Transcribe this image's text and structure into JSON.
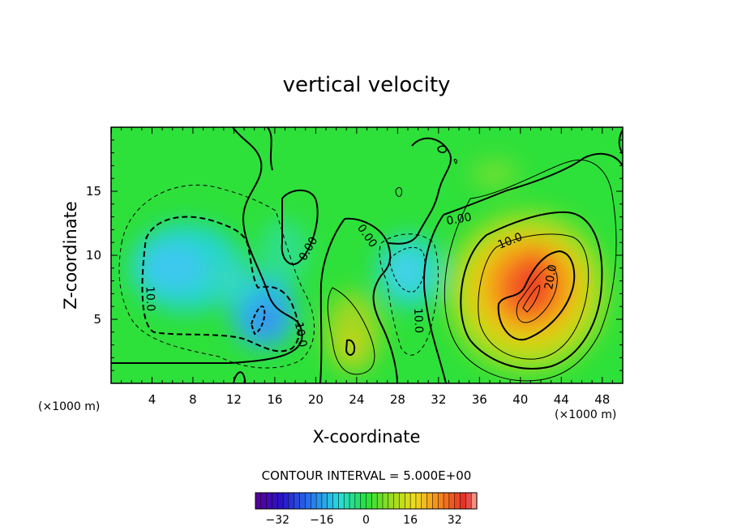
{
  "chart_data": {
    "type": "heatmap",
    "title": "vertical velocity",
    "xlabel": "X-coordinate",
    "ylabel": "Z-coordinate",
    "x_unit": "(×1000 m)",
    "xlim": [
      0,
      50
    ],
    "ylim": [
      0,
      20
    ],
    "x_ticks": [
      4,
      8,
      12,
      16,
      20,
      24,
      28,
      32,
      36,
      40,
      44,
      48
    ],
    "y_ticks": [
      5,
      10,
      15
    ],
    "contour_interval_label": "CONTOUR INTERVAL = 5.000E+00",
    "contour_interval": 5,
    "contour_labels": [
      {
        "text": "0.00",
        "x": 19.3,
        "z": 10.5,
        "angle": -60
      },
      {
        "text": "0.00",
        "x": 25.0,
        "z": 11.5,
        "angle": 55
      },
      {
        "text": "0.00",
        "x": 34.0,
        "z": 12.8,
        "angle": -10
      },
      {
        "text": "10.0",
        "x": 39.0,
        "z": 11.1,
        "angle": -22
      },
      {
        "text": "20.0",
        "x": 43.0,
        "z": 8.3,
        "angle": -80
      },
      {
        "text": "10.0",
        "x": 3.8,
        "z": 6.6,
        "angle": 88
      },
      {
        "text": "10.0",
        "x": 18.5,
        "z": 3.8,
        "angle": 80
      },
      {
        "text": "10.0",
        "x": 30.0,
        "z": 4.9,
        "angle": 88
      }
    ],
    "features": [
      {
        "kind": "updraft",
        "x": 41.0,
        "z": 7.5,
        "peak": 32
      },
      {
        "kind": "downdraft",
        "x": 15.5,
        "z": 4.5,
        "peak": -20
      },
      {
        "kind": "downdraft",
        "x": 7.0,
        "z": 9.0,
        "peak": -15
      },
      {
        "kind": "downdraft",
        "x": 29.5,
        "z": 8.5,
        "peak": -13
      },
      {
        "kind": "updraft",
        "x": 23.5,
        "z": 3.5,
        "peak": 8
      }
    ],
    "colorbar": {
      "min": -40,
      "max": 40,
      "ticks": [
        -32,
        -16,
        0,
        16,
        32
      ],
      "tick_labels": [
        "−32",
        "−16",
        "0",
        "16",
        "32"
      ],
      "colormap": "rainbow"
    }
  }
}
